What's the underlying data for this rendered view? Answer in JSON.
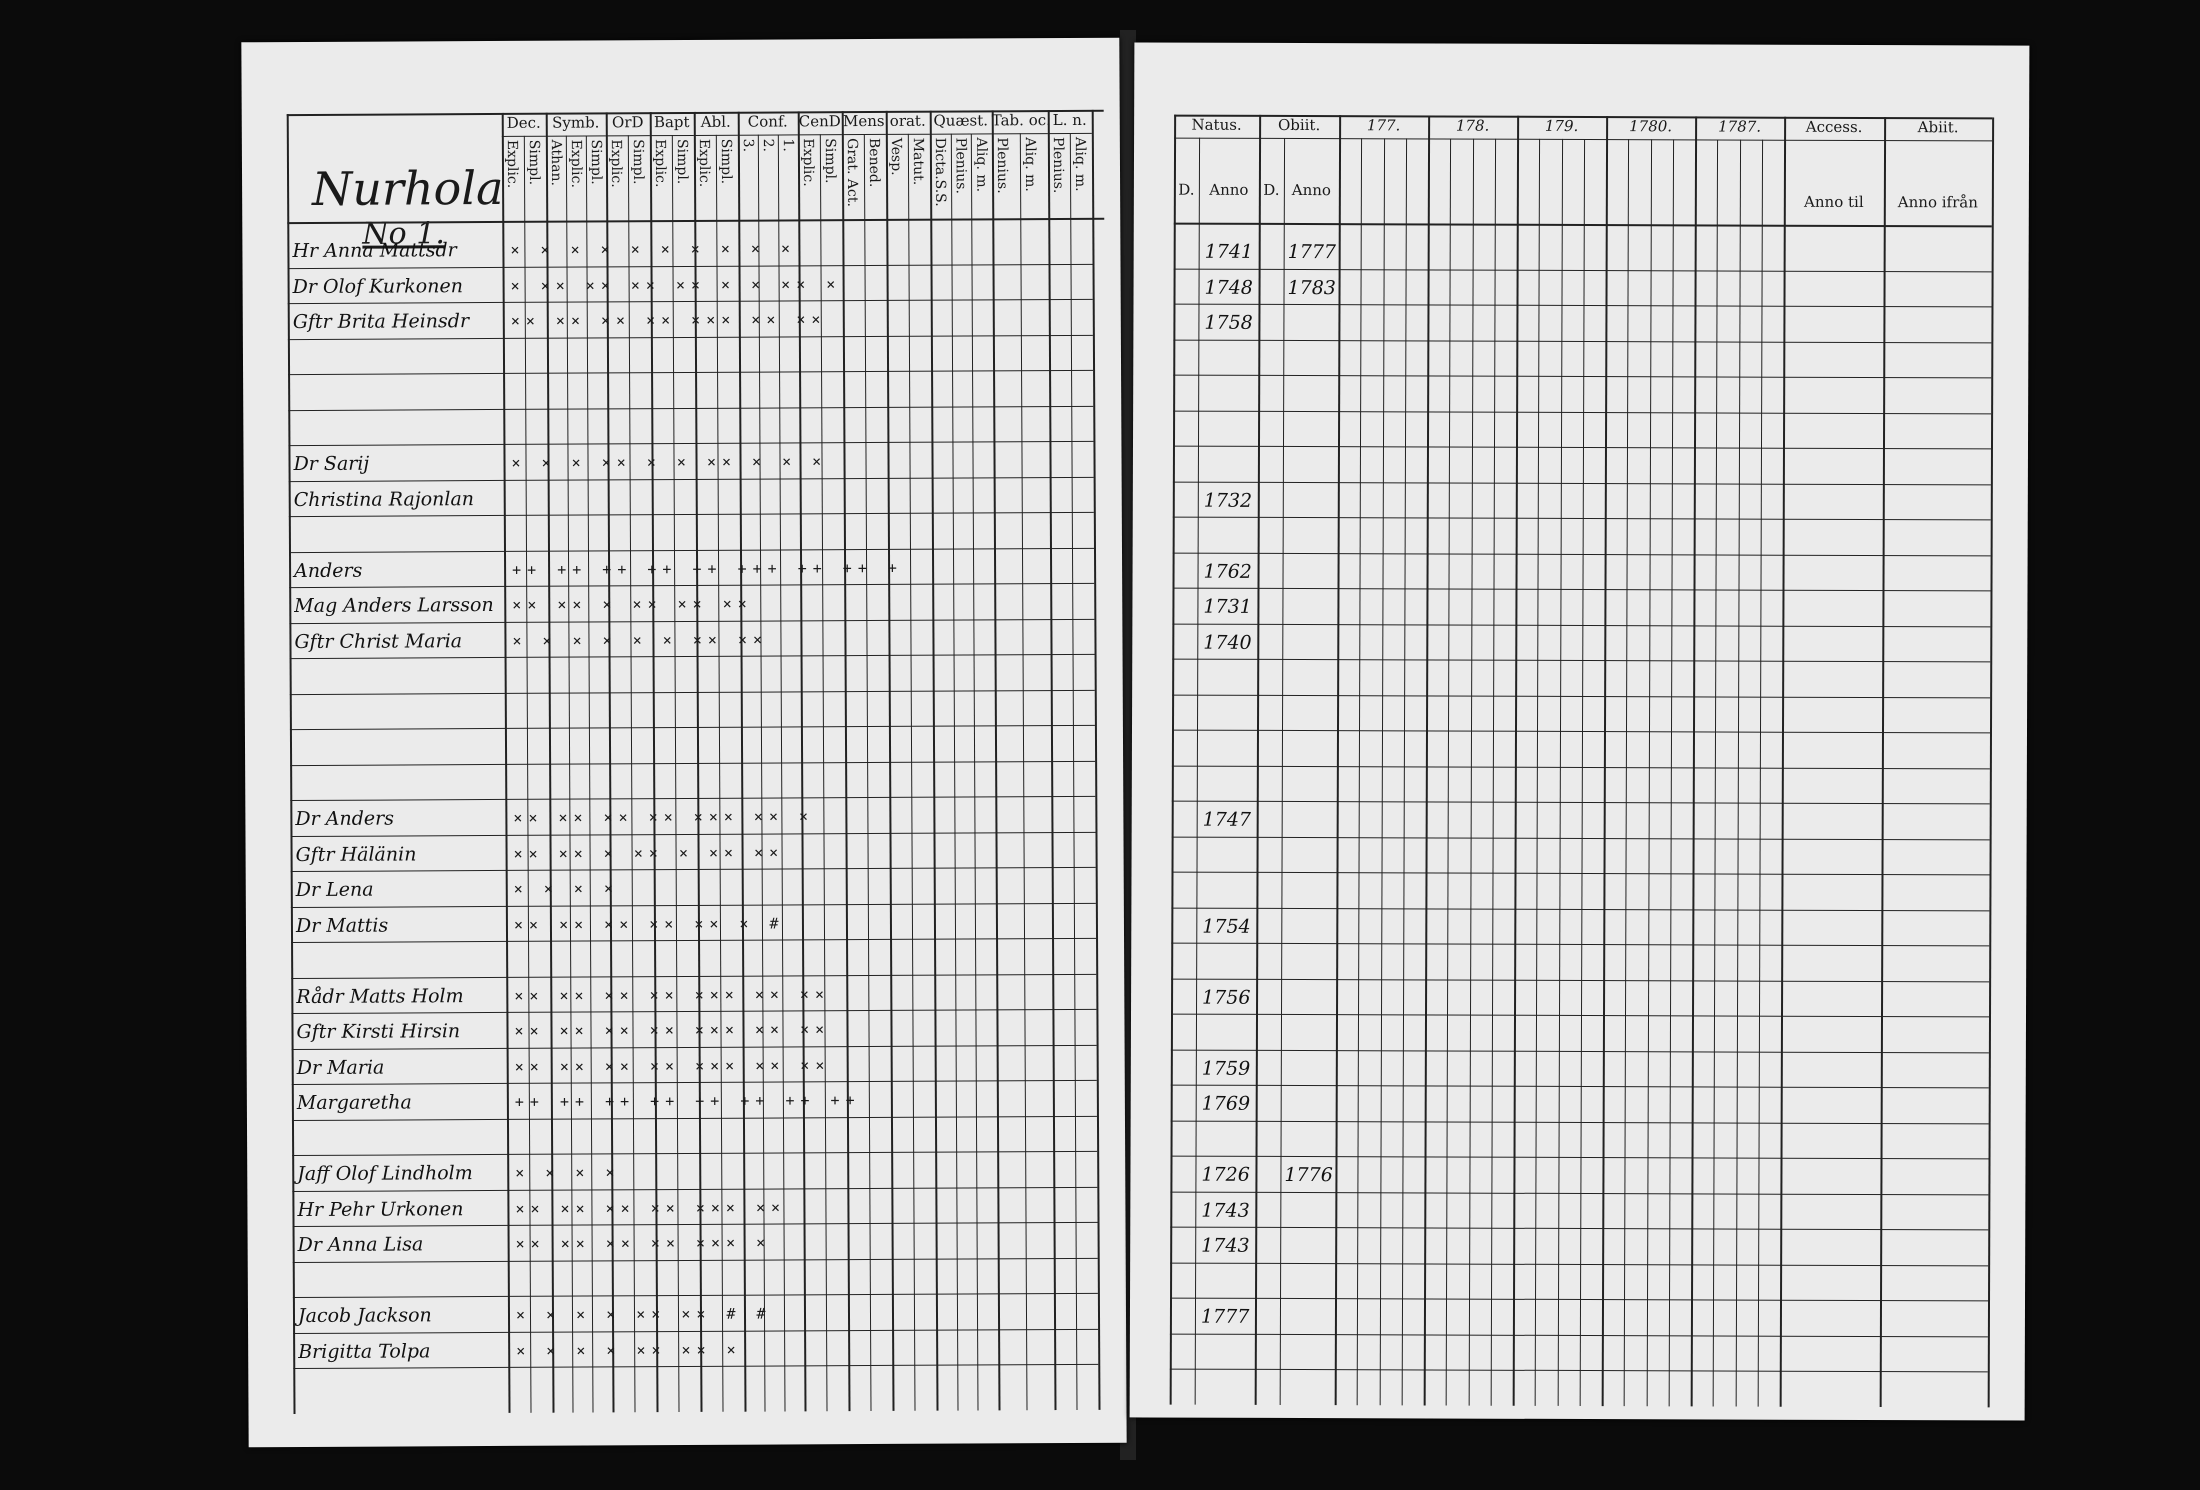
{
  "left_page": {
    "parish": "Nurhola",
    "number": "No 1.",
    "columns": [
      {
        "head": "Dec.",
        "sub": [
          "Explic.",
          "Simpl."
        ]
      },
      {
        "head": "Symb.",
        "sub": [
          "Athan.",
          "Explic.",
          "Simpl."
        ]
      },
      {
        "head": "OrD",
        "sub": [
          "Explic.",
          "Simpl."
        ]
      },
      {
        "head": "Bapt",
        "sub": [
          "Explic.",
          "Simpl."
        ]
      },
      {
        "head": "Abl.",
        "sub": [
          "Explic.",
          "Simpl."
        ]
      },
      {
        "head": "Conf.",
        "sub": [
          "3.",
          "2.",
          "1."
        ]
      },
      {
        "head": "CenD",
        "sub": [
          "Explic.",
          "Simpl."
        ]
      },
      {
        "head": "Mens",
        "sub": [
          "Grat. Act.",
          "Bened."
        ]
      },
      {
        "head": "orat.",
        "sub": [
          "Vesp.",
          "Matut."
        ]
      },
      {
        "head": "Quæst.",
        "sub": [
          "Dicta.S.S.",
          "Plenius.",
          "Aliq. m."
        ]
      },
      {
        "head": "Tab. oc.",
        "sub": [
          "Plenius.",
          "Aliq. m."
        ]
      },
      {
        "head": "L. n.",
        "sub": [
          "Plenius.",
          "Aliq. m."
        ]
      }
    ],
    "entries": [
      {
        "row": 1,
        "name": "Hr Anna Mattsdr",
        "marks": "× × ×   ×  ×  × ×  ×  ×  ×"
      },
      {
        "row": 2,
        "name": "Dr Olof Kurkonen",
        "marks": "× ××  ×× ×× ×× × × ×× ×"
      },
      {
        "row": 3,
        "name": "Gftr Brita Heinsdr",
        "marks": "×× ×× ×× ×× ××× ×× ××"
      },
      {
        "row": 7,
        "name": "Dr Sarij",
        "marks": "× × ×  ×× × × ×× × × ×"
      },
      {
        "row": 8,
        "name": "Christina Rajonlan",
        "marks": ""
      },
      {
        "row": 10,
        "name": "Anders",
        "marks": "++ ++ ++ ++ ++ +++ ++ ++ +"
      },
      {
        "row": 11,
        "name": "Mag Anders Larsson",
        "marks": "×× ××  × ×× ×× ××"
      },
      {
        "row": 12,
        "name": "Gftr Christ Maria",
        "marks": "× ×  ×  × × × ×× ××"
      },
      {
        "row": 17,
        "name": "Dr Anders",
        "marks": "×× ×× ×× ×× ××× ×× ×"
      },
      {
        "row": 18,
        "name": "Gftr Hälänin",
        "marks": "×× ×× × ×× × ×× ××"
      },
      {
        "row": 19,
        "name": "Dr Lena",
        "marks": "×  ×  ×  ×"
      },
      {
        "row": 20,
        "name": "Dr Mattis",
        "marks": "×× ××  ×× ×× ×× ×  #"
      },
      {
        "row": 22,
        "name": "Rådr Matts Holm",
        "marks": "×× ×× ×× ×× ××× ×× ××"
      },
      {
        "row": 23,
        "name": "Gftr Kirsti Hirsin",
        "marks": "×× ×× ×× ×× ××× ×× ××"
      },
      {
        "row": 24,
        "name": "Dr Maria",
        "marks": "×× ×× ×× ×× ××× ×× ××"
      },
      {
        "row": 25,
        "name": "Margaretha",
        "marks": "++ ++ ++ ++ ++ ++ ++ ++"
      },
      {
        "row": 27,
        "name": "Jaff Olof Lindholm",
        "marks": "  × ×  ×  ×"
      },
      {
        "row": 28,
        "name": "Hr Pehr Urkonen",
        "marks": "×× ×× ×× ×× ××× ××"
      },
      {
        "row": 29,
        "name": "Dr Anna Lisa",
        "marks": "×× ×× ×× ×× ××× ×"
      },
      {
        "row": 31,
        "name": "Jacob Jackson",
        "marks": "× ×  ×  × ×× ×× #  #"
      },
      {
        "row": 32,
        "name": "Brigitta Tolpa",
        "marks": "× ×  ×  × ×× ×× ×"
      }
    ]
  },
  "right_page": {
    "natus": {
      "head": "Natus.",
      "d": "D.",
      "anno": "Anno"
    },
    "obiit": {
      "head": "Obiit.",
      "d": "D.",
      "anno": "Anno"
    },
    "years": [
      "177.",
      "178.",
      "179.",
      "1780.",
      "1787."
    ],
    "accession": {
      "head": "Access.",
      "sub": "Anno til"
    },
    "departure": {
      "head": "Abiit.",
      "sub": "Anno ifrån"
    },
    "entries": [
      {
        "row": 1,
        "born": "1741",
        "died": "1777"
      },
      {
        "row": 2,
        "born": "1748",
        "died": "1783"
      },
      {
        "row": 3,
        "born": "1758",
        "died": ""
      },
      {
        "row": 8,
        "born": "1732",
        "died": ""
      },
      {
        "row": 10,
        "born": "1762",
        "died": ""
      },
      {
        "row": 11,
        "born": "1731",
        "died": ""
      },
      {
        "row": 12,
        "born": "1740",
        "died": ""
      },
      {
        "row": 17,
        "born": "1747",
        "died": ""
      },
      {
        "row": 20,
        "born": "1754",
        "died": ""
      },
      {
        "row": 22,
        "born": "1756",
        "died": ""
      },
      {
        "row": 24,
        "born": "1759",
        "died": ""
      },
      {
        "row": 25,
        "born": "1769",
        "died": ""
      },
      {
        "row": 27,
        "born": "1726",
        "died": "1776"
      },
      {
        "row": 28,
        "born": "1743",
        "died": ""
      },
      {
        "row": 29,
        "born": "1743",
        "died": ""
      },
      {
        "row": 31,
        "born": "1777",
        "died": ""
      }
    ]
  }
}
